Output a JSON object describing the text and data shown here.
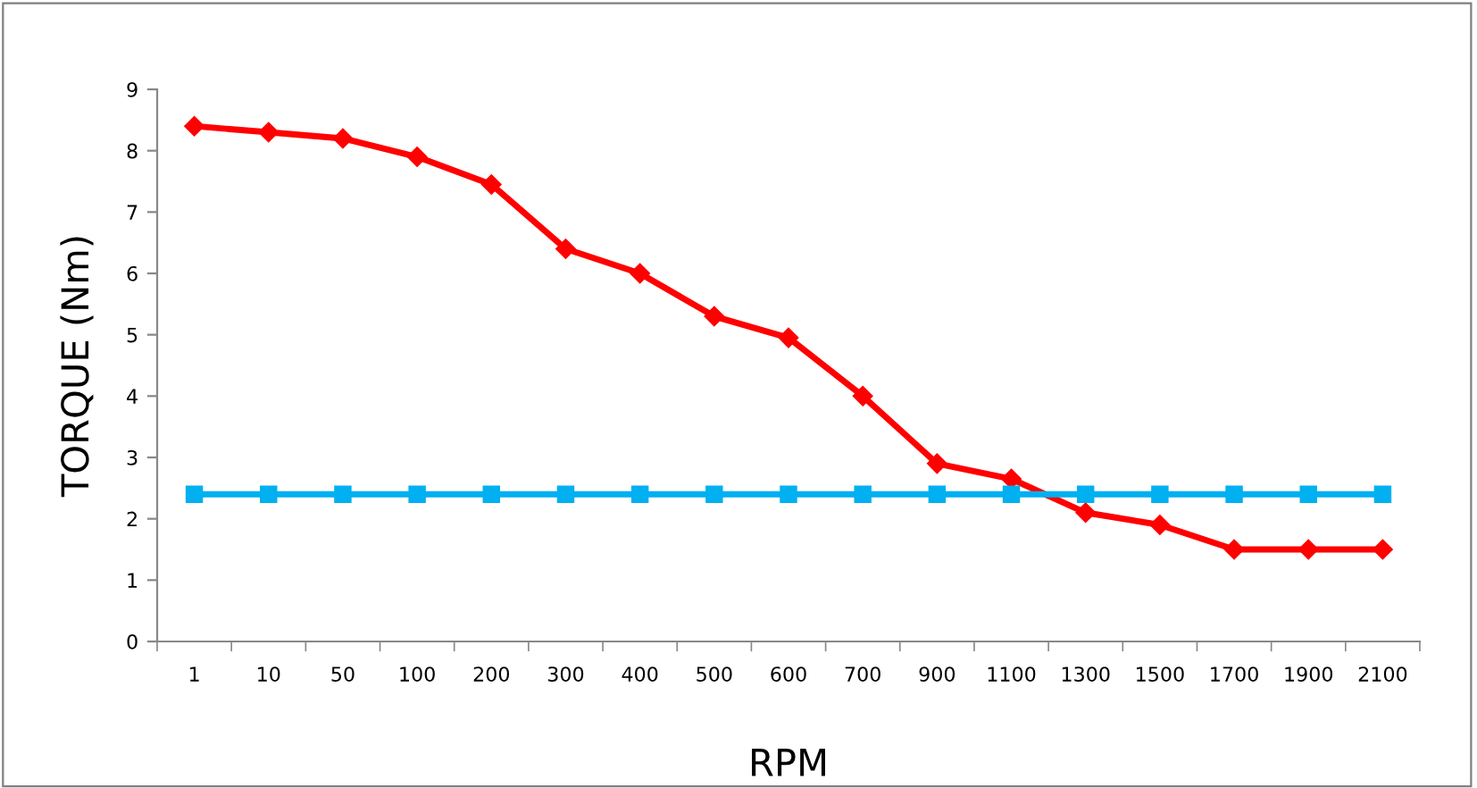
{
  "chart_data": {
    "type": "line",
    "xlabel": "RPM",
    "ylabel": "TORQUE (Nm)",
    "categories": [
      "1",
      "10",
      "50",
      "100",
      "200",
      "300",
      "400",
      "500",
      "600",
      "700",
      "900",
      "1100",
      "1300",
      "1500",
      "1700",
      "1900",
      "2100"
    ],
    "series": [
      {
        "color": "#ff0000",
        "marker": "diamond",
        "values": [
          8.4,
          8.3,
          8.2,
          7.9,
          7.45,
          6.4,
          6.0,
          5.3,
          4.95,
          4.0,
          2.9,
          2.65,
          2.1,
          1.9,
          1.5,
          1.5,
          1.5
        ]
      },
      {
        "color": "#00b0f0",
        "marker": "square",
        "values": [
          2.4,
          2.4,
          2.4,
          2.4,
          2.4,
          2.4,
          2.4,
          2.4,
          2.4,
          2.4,
          2.4,
          2.4,
          2.4,
          2.4,
          2.4,
          2.4,
          2.4
        ]
      }
    ],
    "ylim": [
      0,
      9
    ],
    "yticks": [
      0,
      1,
      2,
      3,
      4,
      5,
      6,
      7,
      8,
      9
    ],
    "grid": false,
    "legend": false,
    "line_style": "solid"
  }
}
